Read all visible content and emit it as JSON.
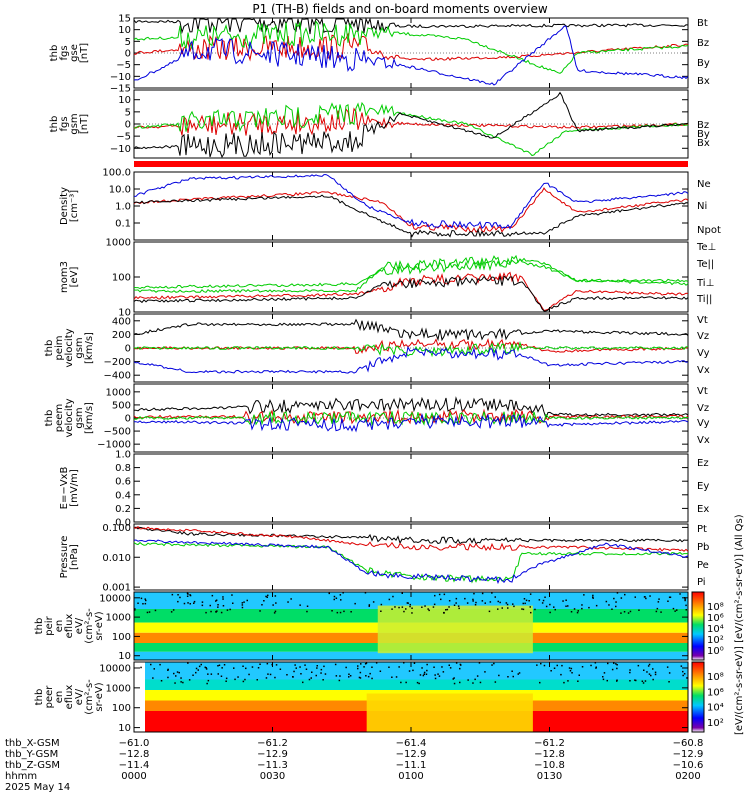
{
  "chart_data": {
    "type": "line",
    "title": "P1 (TH-B) fields and on-board moments overview",
    "panels": [
      {
        "id": "fgs_gse",
        "ylabel_lines": [
          "thb",
          "fgs",
          "gse",
          "[nT]"
        ],
        "ylim": [
          -15,
          15
        ],
        "yticks": [
          {
            "v": 15,
            "t": "15"
          },
          {
            "v": 10,
            "t": "10"
          },
          {
            "v": 5,
            "t": "5"
          },
          {
            "v": 0,
            "t": "0"
          },
          {
            "v": -5,
            "t": "−5"
          },
          {
            "v": -10,
            "t": "−10"
          },
          {
            "v": -15,
            "t": "−15"
          }
        ],
        "series": [
          {
            "name": "Bt",
            "color": "#000000"
          },
          {
            "name": "Bz",
            "color": "#dd0000"
          },
          {
            "name": "By",
            "color": "#00cc00"
          },
          {
            "name": "Bx",
            "color": "#0000dd"
          }
        ]
      },
      {
        "id": "fgs_gsm",
        "ylabel_lines": [
          "thb",
          "fgs",
          "gsm",
          "[nT]"
        ],
        "ylim": [
          -14,
          14
        ],
        "yticks": [
          {
            "v": 10,
            "t": "10"
          },
          {
            "v": 5,
            "t": "5"
          },
          {
            "v": 0,
            "t": "0"
          },
          {
            "v": -5,
            "t": "−5"
          },
          {
            "v": -10,
            "t": "−10"
          }
        ],
        "series": [
          {
            "name": "Bz",
            "color": "#dd0000"
          },
          {
            "name": "By",
            "color": "#00cc00"
          },
          {
            "name": "Bx",
            "color": "#000000"
          }
        ]
      },
      {
        "id": "density",
        "ylabel_lines": [
          "Density",
          "[cm⁻³]"
        ],
        "log": true,
        "ylim": [
          0.01,
          100
        ],
        "yticks": [
          {
            "v": 100,
            "t": "100.0"
          },
          {
            "v": 10,
            "t": "10.0"
          },
          {
            "v": 1,
            "t": "1.0"
          },
          {
            "v": 0.1,
            "t": "0.1"
          }
        ],
        "series": [
          {
            "name": "Ne",
            "color": "#dd0000"
          },
          {
            "name": "Ni",
            "color": "#000000"
          },
          {
            "name": "Npot",
            "color": "#0000dd"
          }
        ]
      },
      {
        "id": "temp",
        "ylabel_lines": [
          "mom3",
          "[eV]"
        ],
        "log": true,
        "ylim": [
          10,
          1000
        ],
        "yticks": [
          {
            "v": 1000,
            "t": "1000"
          },
          {
            "v": 100,
            "t": "100"
          },
          {
            "v": 10,
            "t": "10"
          }
        ],
        "series": [
          {
            "name": "Te⊥",
            "color": "#dd0000"
          },
          {
            "name": "Te||",
            "color": "#000000"
          },
          {
            "name": "Ti⊥",
            "color": "#00cc00"
          },
          {
            "name": "Ti||",
            "color": "#00cc00"
          }
        ]
      },
      {
        "id": "peim_vel",
        "ylabel_lines": [
          "thb",
          "peim",
          "velocity",
          "gsm",
          "[km/s]"
        ],
        "ylim": [
          -500,
          500
        ],
        "yticks": [
          {
            "v": 400,
            "t": "400"
          },
          {
            "v": 200,
            "t": "200"
          },
          {
            "v": 0,
            "t": "0"
          },
          {
            "v": -200,
            "t": "−200"
          },
          {
            "v": -400,
            "t": "−400"
          }
        ],
        "series": [
          {
            "name": "Vt",
            "color": "#000000"
          },
          {
            "name": "Vz",
            "color": "#dd0000"
          },
          {
            "name": "Vy",
            "color": "#00cc00"
          },
          {
            "name": "Vx",
            "color": "#0000dd"
          }
        ]
      },
      {
        "id": "peem_vel",
        "ylabel_lines": [
          "thb",
          "peem",
          "velocity",
          "gsm",
          "[km/s]"
        ],
        "ylim": [
          -1300,
          1300
        ],
        "yticks": [
          {
            "v": 1000,
            "t": "1000"
          },
          {
            "v": 500,
            "t": "500"
          },
          {
            "v": 0,
            "t": "0"
          },
          {
            "v": -500,
            "t": "−500"
          },
          {
            "v": -1000,
            "t": "−1000"
          }
        ],
        "series": [
          {
            "name": "Vt",
            "color": "#000000"
          },
          {
            "name": "Vz",
            "color": "#dd0000"
          },
          {
            "name": "Vy",
            "color": "#00cc00"
          },
          {
            "name": "Vx",
            "color": "#0000dd"
          }
        ]
      },
      {
        "id": "efield",
        "ylabel_lines": [
          "E=−VxB",
          "[mV/m]"
        ],
        "ylim": [
          0,
          1
        ],
        "yticks": [
          {
            "v": 1,
            "t": "1.0"
          },
          {
            "v": 0.8,
            "t": "0.8"
          },
          {
            "v": 0.6,
            "t": "0.6"
          },
          {
            "v": 0.4,
            "t": "0.4"
          },
          {
            "v": 0.2,
            "t": "0.2"
          },
          {
            "v": 0,
            "t": "0.0"
          }
        ],
        "series": [
          {
            "name": "Ez",
            "color": "#dd0000"
          },
          {
            "name": "Ey",
            "color": "#00cc00"
          },
          {
            "name": "Ex",
            "color": "#0000dd"
          }
        ]
      },
      {
        "id": "pressure",
        "ylabel_lines": [
          "Pressure",
          "[nPa]"
        ],
        "log": true,
        "ylim": [
          0.0008,
          0.13
        ],
        "yticks": [
          {
            "v": 0.1,
            "t": "0.100"
          },
          {
            "v": 0.01,
            "t": "0.010"
          },
          {
            "v": 0.001,
            "t": "0.001"
          }
        ],
        "series": [
          {
            "name": "Pt",
            "color": "#000000"
          },
          {
            "name": "Pb",
            "color": "#dd0000"
          },
          {
            "name": "Pe",
            "color": "#00cc00"
          },
          {
            "name": "Pi",
            "color": "#0000dd"
          }
        ]
      },
      {
        "id": "peir_spec",
        "ylabel_lines": [
          "thb",
          "peir",
          "en",
          "eflux",
          "eV/",
          "(cm²-s-",
          "sr-eV)"
        ],
        "log": true,
        "ylim": [
          6,
          20000
        ],
        "yticks": [
          {
            "v": 10000,
            "t": "10000"
          },
          {
            "v": 1000,
            "t": "1000"
          },
          {
            "v": 100,
            "t": "100"
          },
          {
            "v": 10,
            "t": "10"
          }
        ]
      },
      {
        "id": "peer_spec",
        "ylabel_lines": [
          "thb",
          "peer",
          "en",
          "eflux",
          "eV/",
          "(cm²-s-",
          "sr-eV)"
        ],
        "log": true,
        "ylim": [
          6,
          20000
        ],
        "yticks": [
          {
            "v": 10000,
            "t": "10000"
          },
          {
            "v": 1000,
            "t": "1000"
          },
          {
            "v": 100,
            "t": "100"
          },
          {
            "v": 10,
            "t": "10"
          }
        ]
      }
    ],
    "colorbars": [
      {
        "ticks": [
          "10⁸",
          "10⁶",
          "10⁴",
          "10²",
          "10⁰"
        ]
      },
      {
        "ticks": [
          "10⁸",
          "10⁶",
          "10⁴",
          "10²"
        ]
      }
    ],
    "colorbar_label": "[eV/(cm²-s-sr-eV)] [eV/(cm²-s-sr-eV)] (All Qs)",
    "x_axis": {
      "rows": [
        {
          "label": "thb_X-GSM",
          "values": [
            "−61.0",
            "−61.2",
            "−61.4",
            "−61.2",
            "−60.8"
          ]
        },
        {
          "label": "thb_Y-GSM",
          "values": [
            "−12.8",
            "−12.9",
            "−12.9",
            "−12.8",
            "−12.9"
          ]
        },
        {
          "label": "thb_Z-GSM",
          "values": [
            "−11.4",
            "−11.3",
            "−11.1",
            "−10.8",
            "−10.6"
          ]
        },
        {
          "label": "hhmm",
          "values": [
            "0000",
            "0030",
            "0100",
            "0130",
            "0200"
          ]
        }
      ],
      "date": "2025 May 14"
    }
  }
}
